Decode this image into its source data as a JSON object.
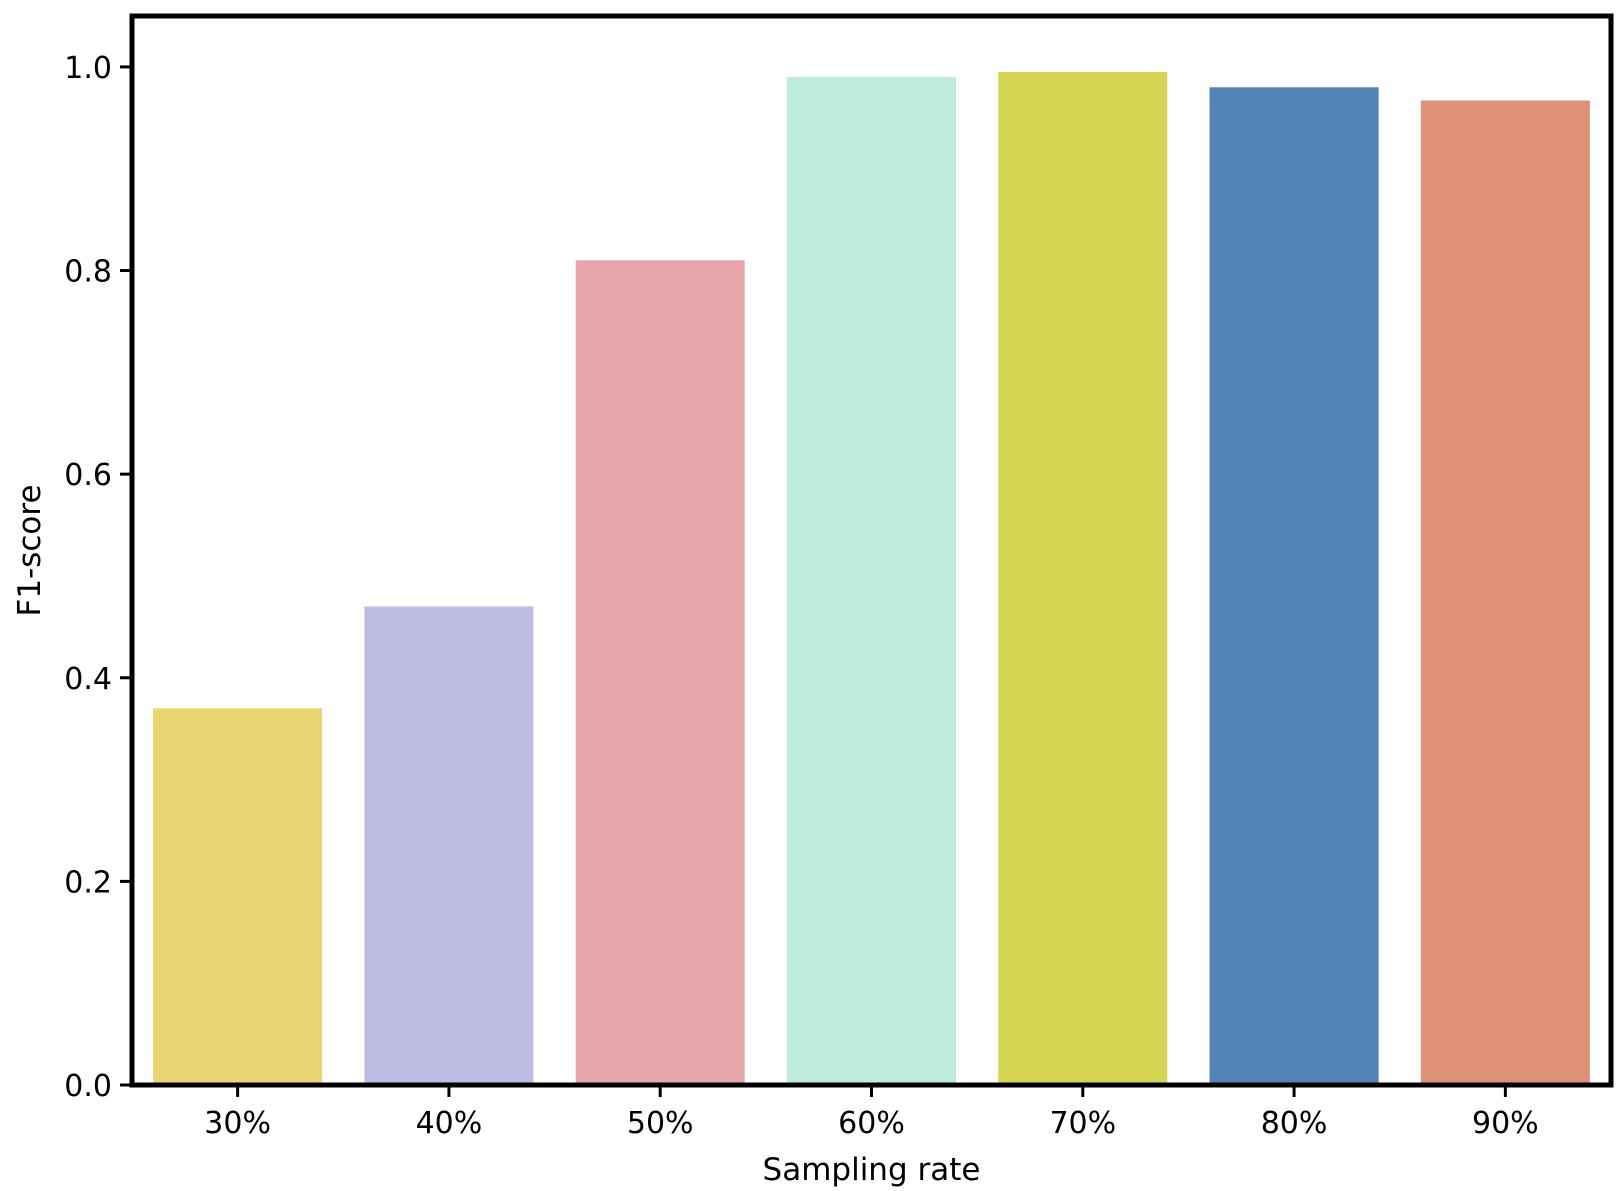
{
  "chart_data": {
    "type": "bar",
    "title": "",
    "xlabel": "Sampling rate",
    "ylabel": "F1-score",
    "categories": [
      "30%",
      "40%",
      "50%",
      "60%",
      "70%",
      "80%",
      "90%"
    ],
    "values": [
      0.37,
      0.47,
      0.81,
      0.99,
      0.995,
      0.98,
      0.967
    ],
    "colors": [
      "#e8d471",
      "#bdbde3",
      "#e5a5a9",
      "#bdecdb",
      "#d4d552",
      "#5184b4",
      "#df9178"
    ],
    "ylim": [
      0,
      1.05
    ],
    "yticks": [
      0.0,
      0.2,
      0.4,
      0.6,
      0.8,
      1.0
    ],
    "ytick_labels": [
      "0.0",
      "0.2",
      "0.4",
      "0.6",
      "0.8",
      "1.0"
    ],
    "grid": false,
    "legend": "none"
  }
}
